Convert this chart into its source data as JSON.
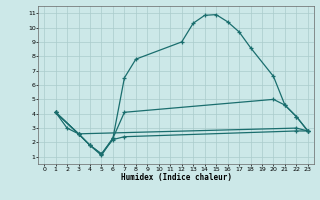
{
  "title": "",
  "xlabel": "Humidex (Indice chaleur)",
  "bg_color": "#cce8e8",
  "grid_color": "#aacccc",
  "line_color": "#1a6e6e",
  "xlim": [
    -0.5,
    23.5
  ],
  "ylim": [
    0.5,
    11.5
  ],
  "xticks": [
    0,
    1,
    2,
    3,
    4,
    5,
    6,
    7,
    8,
    9,
    10,
    11,
    12,
    13,
    14,
    15,
    16,
    17,
    18,
    19,
    20,
    21,
    22,
    23
  ],
  "yticks": [
    1,
    2,
    3,
    4,
    5,
    6,
    7,
    8,
    9,
    10,
    11
  ],
  "curve1_x": [
    1,
    2,
    3,
    4,
    5,
    6,
    7,
    8,
    12,
    13,
    14,
    15,
    16,
    17,
    18,
    20,
    21,
    22,
    23
  ],
  "curve1_y": [
    4.1,
    3.0,
    2.6,
    1.8,
    1.1,
    2.3,
    6.5,
    7.8,
    9.0,
    10.3,
    10.85,
    10.9,
    10.4,
    9.7,
    8.6,
    6.6,
    4.6,
    3.8,
    2.8
  ],
  "curve2_x": [
    1,
    3,
    4,
    5,
    6,
    7,
    20,
    21,
    22,
    23
  ],
  "curve2_y": [
    4.1,
    2.6,
    1.8,
    1.2,
    2.3,
    4.1,
    5.0,
    4.6,
    3.8,
    2.8
  ],
  "curve3_x": [
    1,
    3,
    22,
    23
  ],
  "curve3_y": [
    4.1,
    2.6,
    3.0,
    2.8
  ],
  "curve4_x": [
    1,
    3,
    4,
    5,
    6,
    7,
    22,
    23
  ],
  "curve4_y": [
    4.1,
    2.6,
    1.8,
    1.2,
    2.2,
    2.4,
    2.8,
    2.8
  ]
}
